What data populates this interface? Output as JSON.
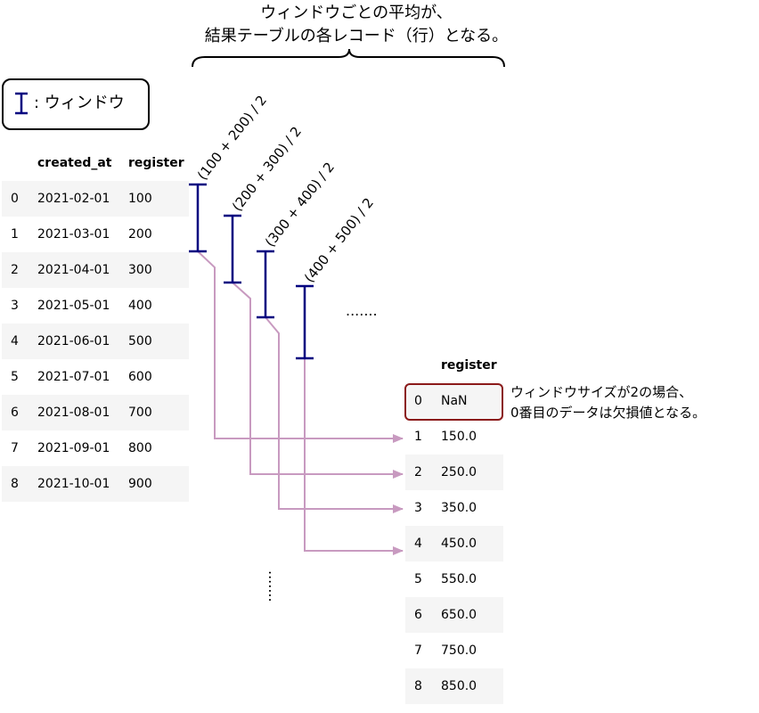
{
  "title": {
    "line1": "ウィンドウごとの平均が、",
    "line2": "結果テーブルの各レコード（行）となる。"
  },
  "legend": {
    "text": ": ウィンドウ"
  },
  "left_table": {
    "headers": [
      "",
      "created_at",
      "register"
    ],
    "rows": [
      [
        "0",
        "2021-02-01",
        "100"
      ],
      [
        "1",
        "2021-03-01",
        "200"
      ],
      [
        "2",
        "2021-04-01",
        "300"
      ],
      [
        "3",
        "2021-05-01",
        "400"
      ],
      [
        "4",
        "2021-06-01",
        "500"
      ],
      [
        "5",
        "2021-07-01",
        "600"
      ],
      [
        "6",
        "2021-08-01",
        "700"
      ],
      [
        "7",
        "2021-09-01",
        "800"
      ],
      [
        "8",
        "2021-10-01",
        "900"
      ]
    ]
  },
  "right_table": {
    "headers": [
      "",
      "register"
    ],
    "rows": [
      [
        "0",
        "NaN"
      ],
      [
        "1",
        "150.0"
      ],
      [
        "2",
        "250.0"
      ],
      [
        "3",
        "350.0"
      ],
      [
        "4",
        "450.0"
      ],
      [
        "5",
        "550.0"
      ],
      [
        "6",
        "650.0"
      ],
      [
        "7",
        "750.0"
      ],
      [
        "8",
        "850.0"
      ]
    ]
  },
  "windows": [
    {
      "label": "(100 + 200) / 2"
    },
    {
      "label": "(200 + 300) / 2"
    },
    {
      "label": "(300 + 400) / 2"
    },
    {
      "label": "(400 + 500) / 2"
    }
  ],
  "ellipsis": ".......",
  "note": {
    "line1": "ウィンドウサイズが2の場合、",
    "line2": "0番目のデータは欠損値となる。"
  },
  "colors": {
    "window": "#000080",
    "arrow": "#c89ac0",
    "highlight": "#8b1a1a"
  }
}
